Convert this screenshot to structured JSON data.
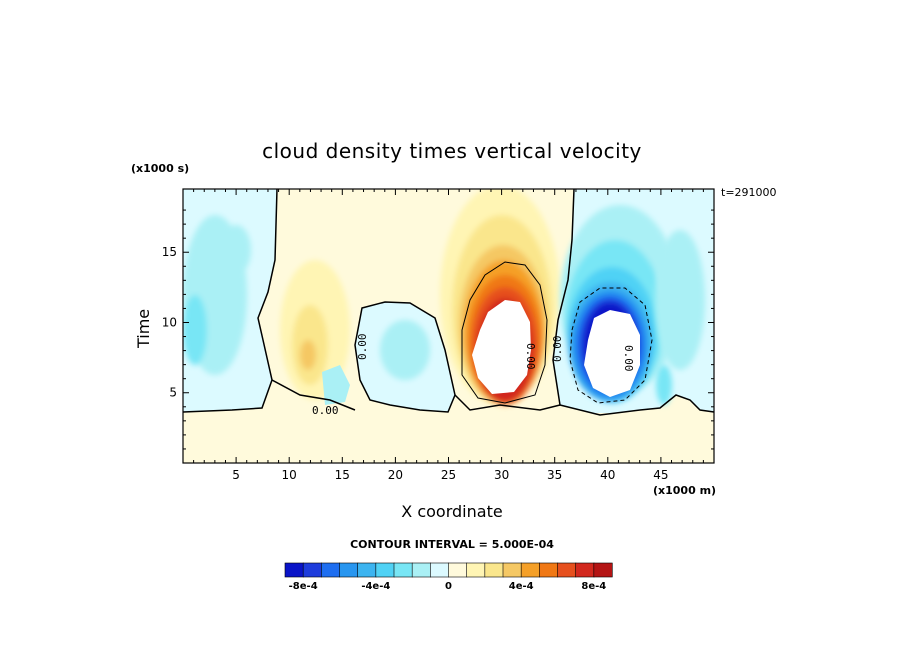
{
  "chart_data": {
    "type": "heatmap",
    "title": "cloud density times vertical velocity",
    "xlabel": "X coordinate",
    "ylabel": "Time",
    "x_unit": "(x1000 m)",
    "y_unit": "(x1000 s)",
    "timestamp": "t=291000",
    "xlim": [
      0,
      50
    ],
    "ylim": [
      0,
      19.5
    ],
    "x_ticks": [
      5,
      10,
      15,
      20,
      25,
      30,
      35,
      40,
      45
    ],
    "y_ticks": [
      5,
      10,
      15
    ],
    "contour_interval_text": "CONTOUR INTERVAL = 5.000E-04",
    "contour_labels": [
      "0.00",
      "0.00",
      "0.00",
      "0.00",
      "0.00"
    ],
    "colorbar": {
      "colors": [
        "#0a14c8",
        "#1e3cdc",
        "#1e6ef0",
        "#2896f0",
        "#3cb4f0",
        "#50d2f5",
        "#78e6f5",
        "#aaf0f5",
        "#dcfaff",
        "#fffadc",
        "#fff5b4",
        "#fae68c",
        "#f5c864",
        "#f5a028",
        "#f07814",
        "#e6501e",
        "#d2281e",
        "#b41414"
      ],
      "tick_labels": [
        "-8e-4",
        "-4e-4",
        "0",
        "4e-4",
        "8e-4"
      ],
      "tick_values": [
        -0.0008,
        -0.0004,
        0,
        0.0004,
        0.0008
      ],
      "vmin": -0.0009,
      "vmax": 0.0009
    },
    "features": [
      {
        "kind": "updraft-core",
        "x": 30.5,
        "y": 8.5,
        "peak_sign": "positive"
      },
      {
        "kind": "downdraft-core",
        "x": 40.5,
        "y": 8.5,
        "peak_sign": "negative"
      }
    ]
  }
}
